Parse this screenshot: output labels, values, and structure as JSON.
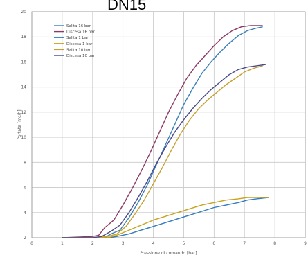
{
  "chart_data": {
    "type": "line",
    "title": "DN15",
    "xlabel": "Pressione di comando [bar]",
    "ylabel": "Portata [mc/h]",
    "xlim": [
      0,
      9
    ],
    "ylim": [
      2,
      20
    ],
    "xticks": [
      "0",
      "1",
      "2",
      "3",
      "4",
      "5",
      "6",
      "7",
      "8",
      "9"
    ],
    "yticks": [
      "2",
      "4",
      "6",
      "8",
      "10",
      "12",
      "14",
      "16",
      "18",
      "20"
    ],
    "grid": true,
    "legend_position": "top-left",
    "series": [
      {
        "name": "Salita 16 bar",
        "color": "#3a7fb8",
        "x": [
          1.0,
          2.0,
          2.4,
          2.6,
          2.9,
          3.2,
          3.5,
          3.8,
          4.1,
          4.4,
          4.7,
          5.0,
          5.3,
          5.6,
          5.9,
          6.2,
          6.5,
          6.8,
          7.1,
          7.4,
          7.6
        ],
        "y": [
          2.0,
          2.0,
          2.0,
          2.3,
          2.6,
          3.6,
          4.8,
          6.2,
          7.8,
          9.4,
          11.0,
          12.6,
          13.9,
          15.1,
          16.0,
          16.8,
          17.5,
          18.1,
          18.5,
          18.7,
          18.8
        ]
      },
      {
        "name": "Discesa 16 bar",
        "color": "#8b3a62",
        "x": [
          1.0,
          2.0,
          2.2,
          2.4,
          2.7,
          3.0,
          3.3,
          3.6,
          3.9,
          4.2,
          4.5,
          4.8,
          5.1,
          5.4,
          5.7,
          6.0,
          6.3,
          6.6,
          6.9,
          7.2,
          7.6
        ],
        "y": [
          2.0,
          2.1,
          2.2,
          2.8,
          3.4,
          4.6,
          5.9,
          7.3,
          8.8,
          10.4,
          12.0,
          13.4,
          14.7,
          15.7,
          16.5,
          17.3,
          18.0,
          18.5,
          18.8,
          18.9,
          18.9
        ]
      },
      {
        "name": "Salita 1 bar",
        "color": "#2f7bbf",
        "x": [
          1.0,
          2.0,
          2.5,
          2.8,
          3.2,
          3.6,
          4.0,
          4.4,
          4.8,
          5.2,
          5.6,
          6.0,
          6.4,
          6.8,
          7.1,
          7.4,
          7.8
        ],
        "y": [
          2.0,
          2.0,
          2.0,
          2.1,
          2.3,
          2.6,
          2.9,
          3.2,
          3.5,
          3.8,
          4.1,
          4.4,
          4.6,
          4.8,
          5.0,
          5.1,
          5.2
        ]
      },
      {
        "name": "Discesa 1 bar",
        "color": "#c9a21a",
        "x": [
          1.0,
          2.0,
          2.5,
          2.8,
          3.2,
          3.6,
          4.0,
          4.4,
          4.8,
          5.2,
          5.6,
          6.0,
          6.4,
          6.8,
          7.1,
          7.4,
          7.8
        ],
        "y": [
          2.0,
          2.0,
          2.0,
          2.2,
          2.6,
          3.0,
          3.4,
          3.7,
          4.0,
          4.3,
          4.6,
          4.8,
          5.0,
          5.1,
          5.2,
          5.2,
          5.2
        ]
      },
      {
        "name": "Salita 10 bar",
        "color": "#c8a030",
        "x": [
          1.0,
          2.0,
          2.5,
          2.8,
          3.1,
          3.4,
          3.7,
          4.0,
          4.3,
          4.6,
          4.9,
          5.2,
          5.5,
          5.8,
          6.1,
          6.4,
          6.7,
          7.0,
          7.3,
          7.6
        ],
        "y": [
          2.0,
          2.0,
          2.1,
          2.3,
          2.9,
          3.9,
          5.0,
          6.3,
          7.6,
          9.0,
          10.3,
          11.4,
          12.3,
          13.0,
          13.6,
          14.2,
          14.7,
          15.2,
          15.5,
          15.7
        ]
      },
      {
        "name": "Discesa 10 bar",
        "color": "#4a4a8a",
        "x": [
          1.0,
          2.0,
          2.3,
          2.6,
          2.9,
          3.2,
          3.5,
          3.8,
          4.1,
          4.4,
          4.7,
          5.0,
          5.3,
          5.6,
          5.9,
          6.2,
          6.5,
          6.8,
          7.1,
          7.4,
          7.7
        ],
        "y": [
          2.0,
          2.0,
          2.1,
          2.5,
          3.0,
          4.0,
          5.2,
          6.5,
          7.9,
          9.2,
          10.4,
          11.4,
          12.3,
          13.1,
          13.8,
          14.4,
          15.0,
          15.4,
          15.6,
          15.7,
          15.8
        ]
      }
    ]
  }
}
